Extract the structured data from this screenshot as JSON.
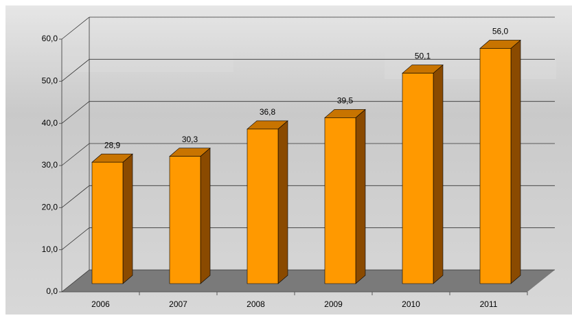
{
  "chart_data": {
    "type": "bar3d",
    "categories": [
      "2006",
      "2007",
      "2008",
      "2009",
      "2010",
      "2011"
    ],
    "values": [
      28.9,
      30.3,
      36.8,
      39.5,
      50.1,
      56.0
    ],
    "value_labels": [
      "28,9",
      "30,3",
      "36,8",
      "39,5",
      "50,1",
      "56,0"
    ],
    "color": "#ff9900",
    "ylim": [
      0,
      60
    ],
    "yticks": [
      {
        "value": 0,
        "label": "0,0"
      },
      {
        "value": 10,
        "label": "10,0"
      },
      {
        "value": 20,
        "label": "20,0"
      },
      {
        "value": 30,
        "label": "30,0"
      },
      {
        "value": 40,
        "label": "40,0"
      },
      {
        "value": 50,
        "label": "50,0"
      },
      {
        "value": 60,
        "label": "60,0"
      }
    ],
    "grid": true
  }
}
